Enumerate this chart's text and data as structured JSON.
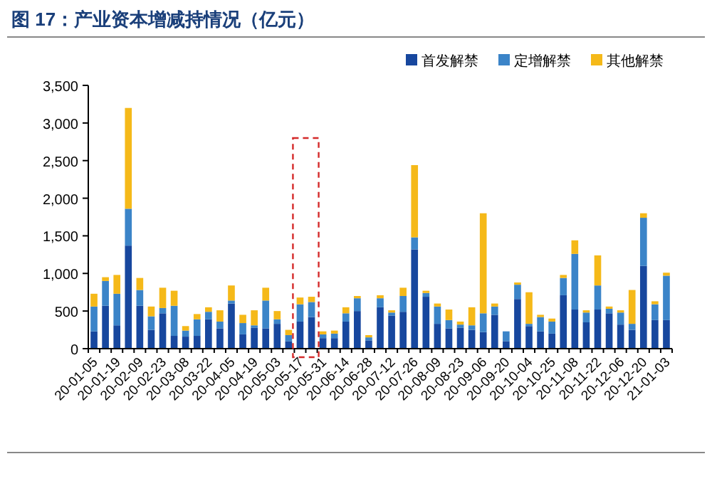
{
  "chart_data": {
    "type": "bar",
    "stacked": true,
    "title": "图 17：产业资本增减持情况（亿元）",
    "categories": [
      "20-01-05",
      null,
      "20-01-19",
      null,
      "20-02-09",
      null,
      "20-02-23",
      null,
      "20-03-08",
      null,
      "20-03-22",
      null,
      "20-04-05",
      null,
      "20-04-19",
      null,
      "20-05-03",
      null,
      "20-05-17",
      null,
      "20-05-31",
      null,
      "20-06-14",
      null,
      "20-06-28",
      null,
      "20-07-12",
      null,
      "20-07-26",
      null,
      "20-08-09",
      null,
      "20-08-23",
      null,
      "20-09-06",
      null,
      "20-09-20",
      null,
      "20-10-04",
      null,
      "20-10-25",
      null,
      "20-11-08",
      null,
      "20-11-22",
      null,
      "20-12-06",
      null,
      "20-12-20",
      null,
      "21-01-03"
    ],
    "series": [
      {
        "name": "首发解禁",
        "color": "#17479e",
        "values": [
          230,
          570,
          310,
          1370,
          570,
          250,
          470,
          170,
          160,
          170,
          390,
          270,
          600,
          190,
          280,
          270,
          330,
          100,
          360,
          420,
          140,
          140,
          360,
          500,
          110,
          550,
          440,
          490,
          1320,
          690,
          330,
          270,
          280,
          250,
          220,
          450,
          100,
          660,
          300,
          230,
          200,
          710,
          520,
          350,
          520,
          470,
          320,
          250,
          1100,
          380,
          380
        ]
      },
      {
        "name": "定增解禁",
        "color": "#3b84c8",
        "values": [
          330,
          330,
          420,
          490,
          210,
          180,
          70,
          400,
          80,
          220,
          100,
          90,
          40,
          150,
          30,
          370,
          60,
          80,
          230,
          200,
          50,
          60,
          110,
          170,
          40,
          120,
          40,
          210,
          160,
          50,
          230,
          110,
          40,
          60,
          250,
          110,
          130,
          190,
          30,
          190,
          160,
          230,
          740,
          130,
          320,
          60,
          160,
          80,
          640,
          210,
          590
        ]
      },
      {
        "name": "其他解禁",
        "color": "#f5b919",
        "values": [
          170,
          50,
          250,
          1340,
          160,
          130,
          270,
          200,
          60,
          70,
          60,
          150,
          200,
          110,
          200,
          170,
          110,
          70,
          90,
          70,
          40,
          40,
          80,
          30,
          30,
          40,
          30,
          110,
          960,
          30,
          40,
          140,
          40,
          240,
          1330,
          40,
          null,
          30,
          420,
          30,
          40,
          40,
          180,
          30,
          400,
          30,
          30,
          450,
          60,
          40,
          40
        ]
      }
    ],
    "ylim": [
      0,
      3500
    ],
    "yticks": [
      0,
      {
        "value": 500,
        "label": "500"
      },
      {
        "value": 1000,
        "label": "1,000"
      },
      {
        "value": 1500,
        "label": "1,500"
      },
      {
        "value": 2000,
        "label": "2,000"
      },
      {
        "value": 2500,
        "label": "2,500"
      },
      {
        "value": 3000,
        "label": "3,000"
      },
      {
        "value": 3500,
        "label": "3,500"
      }
    ],
    "legend": "top right",
    "grid": false
  }
}
